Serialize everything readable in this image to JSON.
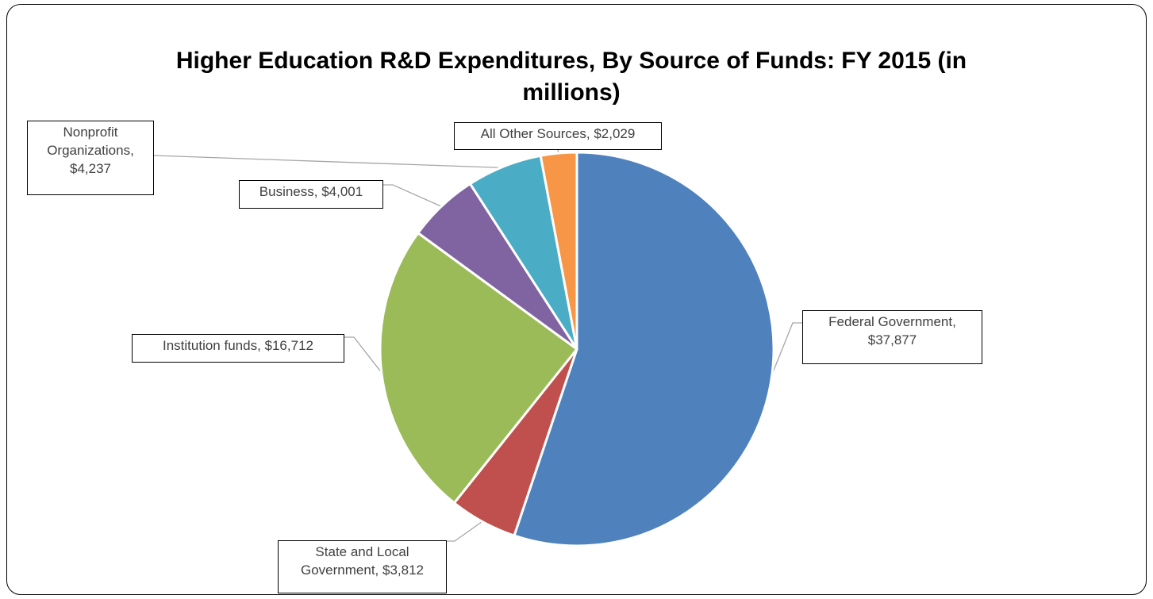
{
  "chart_data": {
    "type": "pie",
    "title": "Higher Education R&D Expenditures, By Source of Funds: FY 2015 (in millions)",
    "series": [
      {
        "name": "",
        "slices": [
          {
            "category": "Federal Government",
            "value": 37877,
            "color": "#4F81BD",
            "label_lines": [
              "Federal Government,",
              "$37,877"
            ]
          },
          {
            "category": "State and Local Government",
            "value": 3812,
            "color": "#C0504D",
            "label_lines": [
              "State and Local",
              "Government, $3,812"
            ]
          },
          {
            "category": "Institution funds",
            "value": 16712,
            "color": "#9BBB59",
            "label_lines": [
              "Institution funds, $16,712"
            ]
          },
          {
            "category": "Business",
            "value": 4001,
            "color": "#8064A2",
            "label_lines": [
              "Business, $4,001"
            ]
          },
          {
            "category": "Nonprofit Organizations",
            "value": 4237,
            "color": "#4BACC6",
            "label_lines": [
              "Nonprofit",
              "Organizations,",
              "$4,237"
            ]
          },
          {
            "category": "All Other Sources",
            "value": 2029,
            "color": "#F79646",
            "label_lines": [
              "All Other Sources, $2,029"
            ]
          }
        ]
      }
    ],
    "start_angle": "12 o'clock",
    "direction": "clockwise",
    "legend": "none",
    "data_labels": "category and value, outside with leader lines"
  }
}
